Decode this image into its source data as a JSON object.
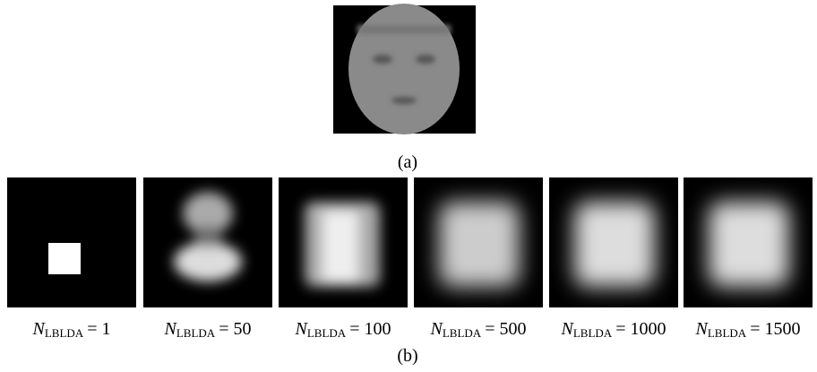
{
  "figure": {
    "caption_a": "(a)",
    "caption_b": "(b)",
    "panels": [
      {
        "symbol": "N",
        "subscript": "LBLDA",
        "rest": "= 1"
      },
      {
        "symbol": "N",
        "subscript": "LBLDA",
        "rest": "= 50"
      },
      {
        "symbol": "N",
        "subscript": "LBLDA",
        "rest": "= 100"
      },
      {
        "symbol": "N",
        "subscript": "LBLDA",
        "rest": "= 500"
      },
      {
        "symbol": "N",
        "subscript": "LBLDA",
        "rest": "= 1000"
      },
      {
        "symbol": "N",
        "subscript": "LBLDA",
        "rest": "= 1500"
      }
    ]
  }
}
